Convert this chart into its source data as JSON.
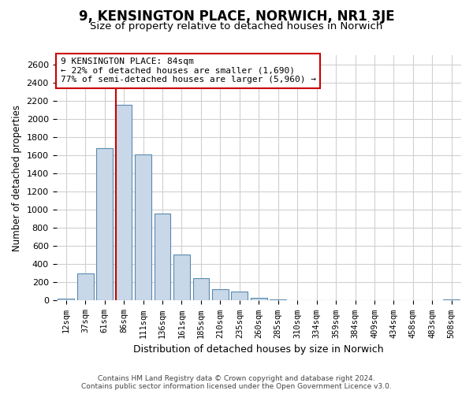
{
  "title": "9, KENSINGTON PLACE, NORWICH, NR1 3JE",
  "subtitle": "Size of property relative to detached houses in Norwich",
  "xlabel": "Distribution of detached houses by size in Norwich",
  "ylabel": "Number of detached properties",
  "bin_labels": [
    "12sqm",
    "37sqm",
    "61sqm",
    "86sqm",
    "111sqm",
    "136sqm",
    "161sqm",
    "185sqm",
    "210sqm",
    "235sqm",
    "260sqm",
    "285sqm",
    "310sqm",
    "334sqm",
    "359sqm",
    "384sqm",
    "409sqm",
    "434sqm",
    "458sqm",
    "483sqm",
    "508sqm"
  ],
  "bar_values": [
    20,
    295,
    1680,
    2150,
    1610,
    960,
    505,
    245,
    125,
    95,
    30,
    10,
    8,
    5,
    3,
    2,
    2,
    1,
    1,
    0,
    15
  ],
  "bar_color": "#c8d8e8",
  "bar_edge_color": "#5a8ab0",
  "vline_color": "#cc0000",
  "annotation_line1": "9 KENSINGTON PLACE: 84sqm",
  "annotation_line2": "← 22% of detached houses are smaller (1,690)",
  "annotation_line3": "77% of semi-detached houses are larger (5,960) →",
  "ylim": [
    0,
    2700
  ],
  "yticks": [
    0,
    200,
    400,
    600,
    800,
    1000,
    1200,
    1400,
    1600,
    1800,
    2000,
    2200,
    2400,
    2600
  ],
  "footer_line1": "Contains HM Land Registry data © Crown copyright and database right 2024.",
  "footer_line2": "Contains public sector information licensed under the Open Government Licence v3.0.",
  "background_color": "#ffffff",
  "grid_color": "#d0d0d0"
}
